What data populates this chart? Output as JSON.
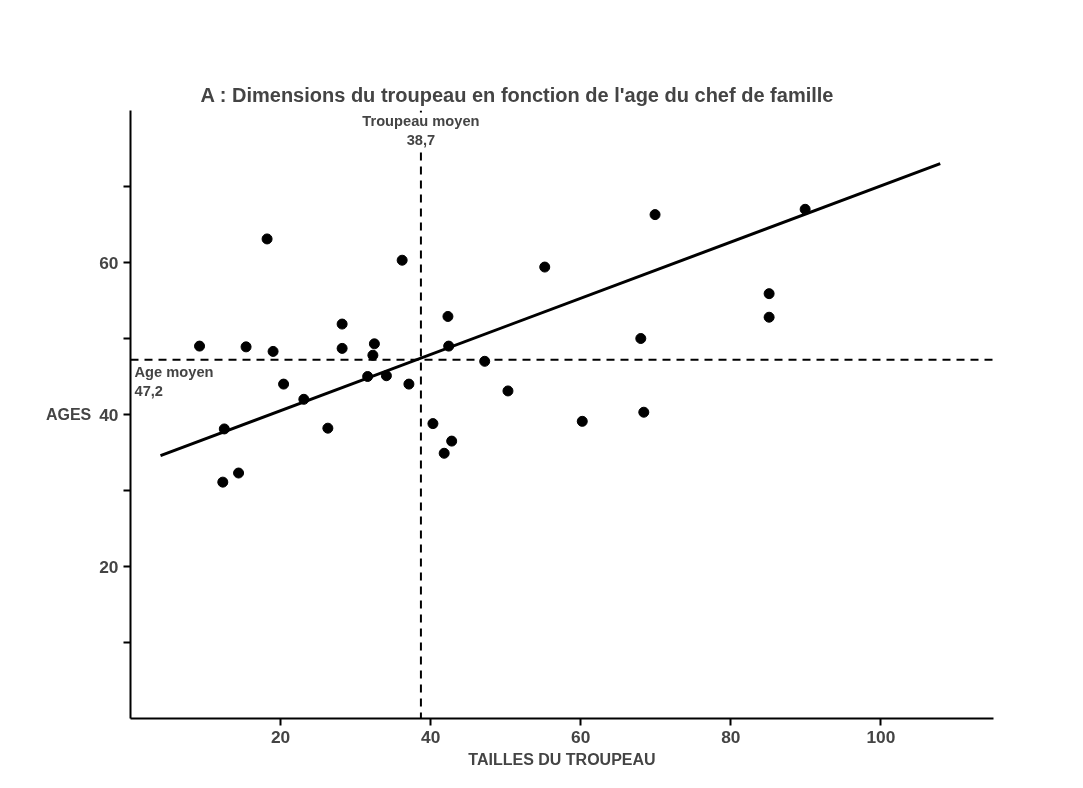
{
  "chart_data": {
    "type": "scatter",
    "title": "A : Dimensions du troupeau en fonction de l'age du chef de famille",
    "xlabel": "TAILLES DU TROUPEAU",
    "ylabel": "AGES",
    "xlim": [
      0,
      115
    ],
    "ylim": [
      0,
      80
    ],
    "xticks": [
      20,
      40,
      60,
      80,
      100
    ],
    "yticks": [
      {
        "value": 10,
        "label": null
      },
      20,
      {
        "value": 30,
        "label": null
      },
      40,
      {
        "value": 50,
        "label": null
      },
      60,
      {
        "value": 70,
        "label": null
      }
    ],
    "marker": "circle",
    "series": [
      {
        "color": "#000000",
        "x": [
          9.2,
          15.4,
          19.0,
          18.2,
          20.4,
          23.1,
          12.5,
          12.3,
          14.4,
          26.3,
          28.2,
          28.2,
          32.5,
          32.3,
          31.6,
          34.1,
          36.2,
          37.1,
          40.3,
          42.8,
          41.8,
          42.3,
          42.4,
          47.2,
          55.2,
          69.9,
          89.9,
          85.1,
          85.1,
          68.0,
          50.3,
          60.2,
          68.4
        ],
        "values": [
          49.0,
          48.9,
          48.3,
          63.1,
          44.0,
          42.0,
          38.1,
          31.1,
          32.3,
          38.2,
          51.9,
          48.7,
          49.3,
          47.8,
          45.0,
          45.1,
          60.3,
          44.0,
          38.8,
          36.5,
          34.9,
          52.9,
          49.0,
          47.0,
          59.4,
          66.3,
          67.0,
          55.9,
          52.8,
          50.0,
          43.1,
          39.1,
          40.3
        ]
      },
      {
        "type": "line",
        "color": "#000000",
        "line_style": "solid",
        "marker": "none",
        "x": [
          4.0,
          107.9
        ],
        "values": [
          34.6,
          73.0
        ]
      }
    ],
    "ref_lines": [
      {
        "axis": "x",
        "value": 38.7,
        "label": "Troupeau moyen\n38,7",
        "color": "#000000",
        "line_style": "dashed"
      },
      {
        "axis": "y",
        "value": 47.2,
        "label": "Age moyen\n47,2",
        "color": "#000000",
        "line_style": "dashed"
      }
    ]
  }
}
